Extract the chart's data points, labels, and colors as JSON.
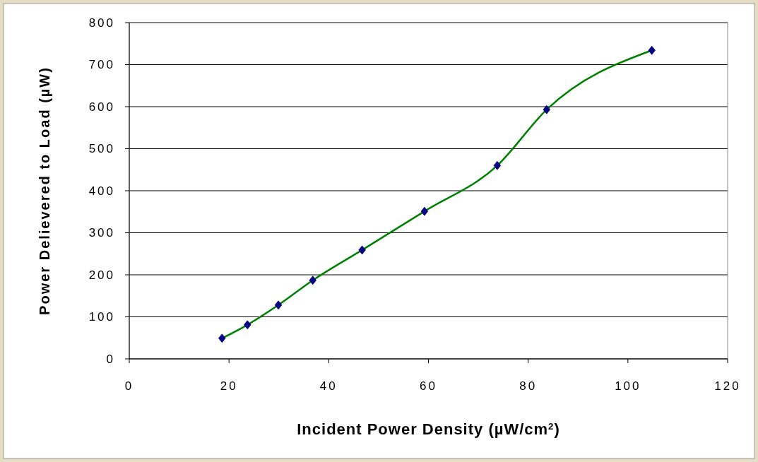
{
  "chart_data": {
    "type": "line",
    "xlabel": "Incident Power Density (µW/cm$^{2}$)",
    "ylabel": "Power Delievered to Load (µW)",
    "x": [
      18.6,
      23.7,
      29.9,
      36.8,
      46.7,
      59.2,
      73.8,
      83.7,
      104.8
    ],
    "series": [
      {
        "color": "#008000",
        "marker": "none",
        "values": [
          49,
          81,
          128,
          187,
          259,
          351,
          460,
          593,
          734
        ]
      },
      {
        "type": "scatter",
        "color": "#000080",
        "marker": "diamond",
        "values": [
          49,
          81,
          128,
          187,
          259,
          351,
          460,
          593,
          734
        ]
      }
    ],
    "xlim": [
      0,
      120
    ],
    "xticks": [
      0,
      20,
      40,
      60,
      80,
      100,
      120
    ],
    "ylim": [
      0,
      800
    ],
    "yticks": [
      0,
      100,
      200,
      300,
      400,
      500,
      600,
      700,
      800
    ],
    "grid": "y"
  }
}
